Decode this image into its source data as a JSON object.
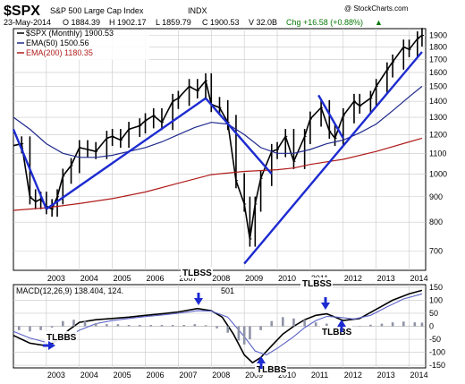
{
  "header": {
    "symbol": "$SPX",
    "name": "S&P 500 Large Cap Index",
    "exchange": "INDX",
    "date": "23-May-2014",
    "open": "O 1884.39",
    "high": "H 1902.17",
    "low": "L 1859.79",
    "close": "C 1900.53",
    "volume": "V 32.0B",
    "change": "Chg +16.58 (+0.88%)",
    "change_arrow": "▲",
    "watermark": "@ StockCharts.com"
  },
  "legend": {
    "price": "$SPX (Monthly) 1900.53",
    "ema50": "EMA(50) 1500.56",
    "ema200": "EMA(200) 1180.35",
    "macd": "MACD(12,26,9) 138.404, 124.",
    "macd_tail": "501"
  },
  "colors": {
    "price": "#000000",
    "ema50": "#1f2a8c",
    "ema200": "#b01c1c",
    "trendline": "#1d2bd0",
    "signal": "#5b62c8",
    "histogram": "#8f93a6",
    "grid": "#c8c8c8",
    "annot": "#1d2bd0"
  },
  "annotations": [
    {
      "label": "TLBBS"
    },
    {
      "label": "TLBSS"
    },
    {
      "label": "TLBBS"
    },
    {
      "label": "TLBSS"
    },
    {
      "label": "TLBBS"
    }
  ],
  "chart_data": [
    {
      "type": "line",
      "title": "$SPX S&P 500 Large Cap Index INDX",
      "x_label": "",
      "y_label": "",
      "x_ticks": [
        "2003",
        "2004",
        "2005",
        "2006",
        "2007",
        "2008",
        "2009",
        "2010",
        "2011",
        "2012",
        "2013",
        "2014"
      ],
      "y_ticks": [
        700,
        800,
        900,
        1000,
        1100,
        1200,
        1300,
        1400,
        1500,
        1600,
        1700,
        1800,
        1900
      ],
      "y_scale": "log",
      "xlim": [
        2002.0,
        2014.5
      ],
      "ylim": [
        640,
        1960
      ],
      "grid": true,
      "series": [
        {
          "name": "$SPX (Monthly)",
          "style": "hlc-bars",
          "points": [
            [
              2002.0,
              1140
            ],
            [
              2002.25,
              1150
            ],
            [
              2002.5,
              900
            ],
            [
              2002.67,
              880
            ],
            [
              2002.83,
              890
            ],
            [
              2003.0,
              860
            ],
            [
              2003.17,
              850
            ],
            [
              2003.33,
              900
            ],
            [
              2003.5,
              990
            ],
            [
              2003.75,
              1040
            ],
            [
              2004.0,
              1130
            ],
            [
              2004.25,
              1120
            ],
            [
              2004.5,
              1110
            ],
            [
              2004.83,
              1180
            ],
            [
              2005.0,
              1190
            ],
            [
              2005.25,
              1170
            ],
            [
              2005.5,
              1230
            ],
            [
              2005.83,
              1250
            ],
            [
              2006.0,
              1280
            ],
            [
              2006.25,
              1310
            ],
            [
              2006.5,
              1270
            ],
            [
              2006.83,
              1400
            ],
            [
              2007.0,
              1420
            ],
            [
              2007.33,
              1500
            ],
            [
              2007.58,
              1470
            ],
            [
              2007.83,
              1540
            ],
            [
              2008.0,
              1380
            ],
            [
              2008.25,
              1360
            ],
            [
              2008.5,
              1270
            ],
            [
              2008.75,
              970
            ],
            [
              2009.0,
              870
            ],
            [
              2009.17,
              740
            ],
            [
              2009.33,
              870
            ],
            [
              2009.5,
              980
            ],
            [
              2009.83,
              1110
            ],
            [
              2010.0,
              1120
            ],
            [
              2010.25,
              1190
            ],
            [
              2010.5,
              1060
            ],
            [
              2010.83,
              1190
            ],
            [
              2011.0,
              1290
            ],
            [
              2011.33,
              1360
            ],
            [
              2011.58,
              1220
            ],
            [
              2011.75,
              1180
            ],
            [
              2012.0,
              1310
            ],
            [
              2012.33,
              1400
            ],
            [
              2012.5,
              1370
            ],
            [
              2012.83,
              1420
            ],
            [
              2013.0,
              1500
            ],
            [
              2013.33,
              1620
            ],
            [
              2013.5,
              1680
            ],
            [
              2013.83,
              1800
            ],
            [
              2014.0,
              1780
            ],
            [
              2014.25,
              1870
            ],
            [
              2014.39,
              1900
            ]
          ]
        },
        {
          "name": "EMA(50)",
          "points": [
            [
              2002.0,
              1300
            ],
            [
              2002.5,
              1230
            ],
            [
              2003.0,
              1150
            ],
            [
              2003.5,
              1100
            ],
            [
              2004.0,
              1080
            ],
            [
              2004.5,
              1080
            ],
            [
              2005.0,
              1090
            ],
            [
              2005.5,
              1110
            ],
            [
              2006.0,
              1130
            ],
            [
              2006.5,
              1160
            ],
            [
              2007.0,
              1200
            ],
            [
              2007.5,
              1240
            ],
            [
              2008.0,
              1270
            ],
            [
              2008.5,
              1260
            ],
            [
              2009.0,
              1200
            ],
            [
              2009.5,
              1130
            ],
            [
              2010.0,
              1100
            ],
            [
              2010.5,
              1100
            ],
            [
              2011.0,
              1120
            ],
            [
              2011.5,
              1150
            ],
            [
              2012.0,
              1170
            ],
            [
              2012.5,
              1210
            ],
            [
              2013.0,
              1260
            ],
            [
              2013.5,
              1340
            ],
            [
              2014.0,
              1430
            ],
            [
              2014.39,
              1500
            ]
          ]
        },
        {
          "name": "EMA(200)",
          "points": [
            [
              2002.0,
              845
            ],
            [
              2003.0,
              855
            ],
            [
              2004.0,
              872
            ],
            [
              2005.0,
              892
            ],
            [
              2006.0,
              920
            ],
            [
              2007.0,
              958
            ],
            [
              2008.0,
              997
            ],
            [
              2009.0,
              1012
            ],
            [
              2010.0,
              1020
            ],
            [
              2010.5,
              1028
            ],
            [
              2011.0,
              1045
            ],
            [
              2012.0,
              1070
            ],
            [
              2013.0,
              1110
            ],
            [
              2014.0,
              1160
            ],
            [
              2014.39,
              1180
            ]
          ]
        }
      ],
      "trendlines": [
        {
          "from": [
            2002.0,
            1230
          ],
          "to": [
            2003.0,
            850
          ]
        },
        {
          "from": [
            2003.0,
            850
          ],
          "to": [
            2007.83,
            1420
          ]
        },
        {
          "from": [
            2007.83,
            1420
          ],
          "to": [
            2009.83,
            1000
          ]
        },
        {
          "from": [
            2009.0,
            660
          ],
          "to": [
            2014.39,
            1760
          ]
        },
        {
          "from": [
            2011.25,
            1440
          ],
          "to": [
            2012.0,
            1180
          ]
        }
      ]
    },
    {
      "type": "line",
      "title": "MACD(12,26,9) 138.404, 124.501",
      "x_ticks": [
        "2003",
        "2004",
        "2005",
        "2006",
        "2007",
        "2008",
        "2009",
        "2010",
        "2011",
        "2012",
        "2013",
        "2014"
      ],
      "y_ticks": [
        -150,
        -100,
        -50,
        0,
        50,
        100,
        150
      ],
      "xlim": [
        2002.0,
        2014.5
      ],
      "ylim": [
        -160,
        160
      ],
      "grid": true,
      "series": [
        {
          "name": "MACD",
          "points": [
            [
              2002.0,
              -35
            ],
            [
              2002.5,
              -65
            ],
            [
              2003.0,
              -75
            ],
            [
              2003.33,
              -55
            ],
            [
              2003.67,
              -15
            ],
            [
              2004.0,
              15
            ],
            [
              2004.5,
              25
            ],
            [
              2005.0,
              30
            ],
            [
              2005.5,
              35
            ],
            [
              2006.0,
              42
            ],
            [
              2006.5,
              48
            ],
            [
              2007.0,
              55
            ],
            [
              2007.58,
              68
            ],
            [
              2008.0,
              60
            ],
            [
              2008.33,
              35
            ],
            [
              2008.67,
              -30
            ],
            [
              2009.0,
              -110
            ],
            [
              2009.25,
              -140
            ],
            [
              2009.5,
              -120
            ],
            [
              2009.83,
              -75
            ],
            [
              2010.17,
              -30
            ],
            [
              2010.5,
              0
            ],
            [
              2010.83,
              25
            ],
            [
              2011.17,
              42
            ],
            [
              2011.5,
              48
            ],
            [
              2011.75,
              35
            ],
            [
              2012.0,
              22
            ],
            [
              2012.5,
              30
            ],
            [
              2013.0,
              65
            ],
            [
              2013.5,
              100
            ],
            [
              2014.0,
              125
            ],
            [
              2014.39,
              138
            ]
          ]
        },
        {
          "name": "Signal",
          "points": [
            [
              2002.0,
              -20
            ],
            [
              2002.5,
              -45
            ],
            [
              2003.0,
              -62
            ],
            [
              2003.5,
              -50
            ],
            [
              2004.0,
              -15
            ],
            [
              2004.5,
              10
            ],
            [
              2005.0,
              22
            ],
            [
              2005.5,
              30
            ],
            [
              2006.0,
              37
            ],
            [
              2006.5,
              43
            ],
            [
              2007.0,
              50
            ],
            [
              2007.58,
              60
            ],
            [
              2008.0,
              58
            ],
            [
              2008.5,
              35
            ],
            [
              2009.0,
              -40
            ],
            [
              2009.33,
              -95
            ],
            [
              2009.67,
              -110
            ],
            [
              2010.0,
              -85
            ],
            [
              2010.5,
              -40
            ],
            [
              2010.83,
              -5
            ],
            [
              2011.17,
              22
            ],
            [
              2011.5,
              38
            ],
            [
              2011.83,
              35
            ],
            [
              2012.33,
              28
            ],
            [
              2012.83,
              42
            ],
            [
              2013.33,
              75
            ],
            [
              2013.83,
              105
            ],
            [
              2014.39,
              124.5
            ]
          ]
        },
        {
          "name": "Histogram",
          "style": "bars",
          "points": [
            [
              2002.17,
              -15
            ],
            [
              2002.5,
              -20
            ],
            [
              2002.83,
              -15
            ],
            [
              2003.17,
              -5
            ],
            [
              2003.5,
              20
            ],
            [
              2003.83,
              25
            ],
            [
              2004.17,
              20
            ],
            [
              2004.5,
              12
            ],
            [
              2004.83,
              8
            ],
            [
              2005.17,
              8
            ],
            [
              2005.5,
              5
            ],
            [
              2005.83,
              5
            ],
            [
              2006.17,
              5
            ],
            [
              2006.5,
              5
            ],
            [
              2006.83,
              5
            ],
            [
              2007.17,
              5
            ],
            [
              2007.5,
              8
            ],
            [
              2007.83,
              4
            ],
            [
              2008.17,
              -8
            ],
            [
              2008.5,
              -25
            ],
            [
              2008.83,
              -55
            ],
            [
              2009.0,
              -70
            ],
            [
              2009.17,
              -50
            ],
            [
              2009.5,
              -15
            ],
            [
              2009.83,
              20
            ],
            [
              2010.17,
              35
            ],
            [
              2010.5,
              30
            ],
            [
              2010.83,
              25
            ],
            [
              2011.17,
              15
            ],
            [
              2011.5,
              10
            ],
            [
              2011.83,
              -5
            ],
            [
              2012.17,
              -8
            ],
            [
              2012.5,
              0
            ],
            [
              2012.83,
              6
            ],
            [
              2013.17,
              10
            ],
            [
              2013.5,
              15
            ],
            [
              2013.83,
              18
            ],
            [
              2014.17,
              15
            ],
            [
              2014.39,
              14
            ]
          ]
        }
      ]
    }
  ]
}
